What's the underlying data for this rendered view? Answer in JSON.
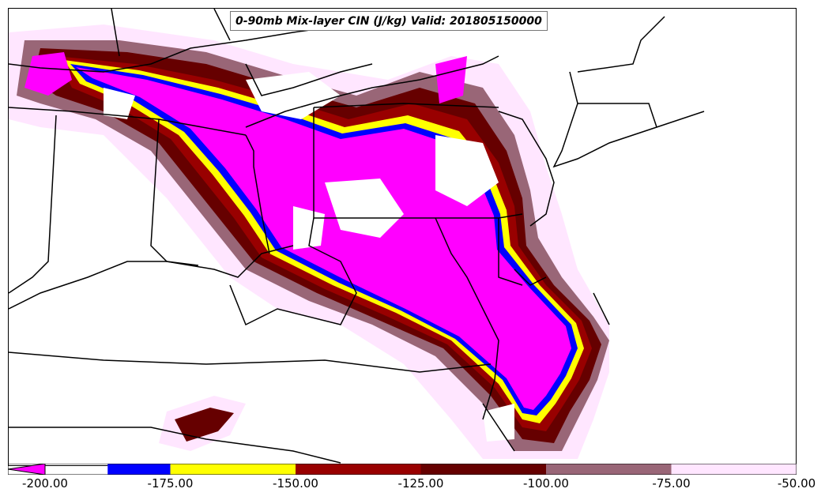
{
  "title": "0-90mb Mix-layer CIN (J/kg) Valid: 201805150000",
  "colorbar": {
    "ticks": [
      "-200.00",
      "-175.00",
      "-150.00",
      "-125.00",
      "-100.00",
      "-75.00",
      "-50.00"
    ],
    "tick_values": [
      -200,
      -175,
      -150,
      -125,
      -100,
      -75,
      -50
    ],
    "bins": [
      {
        "from": -200,
        "to": -187.5,
        "color": "#ff00ff"
      },
      {
        "from": -187.5,
        "to": -175,
        "color": "#0000ff"
      },
      {
        "from": -175,
        "to": -150,
        "color": "#ffff00"
      },
      {
        "from": -150,
        "to": -125,
        "color": "#990000"
      },
      {
        "from": -125,
        "to": -100,
        "color": "#660000"
      },
      {
        "from": -100,
        "to": -75,
        "color": "#996677"
      },
      {
        "from": -75,
        "to": -50,
        "color": "#ffe6ff"
      }
    ],
    "extend": "min"
  },
  "legend_colors": {
    "below_minus_200": "#ff00ff",
    "minus_187": "#0000ff",
    "minus_175": "#ffff00",
    "minus_150": "#990000",
    "minus_125": "#660000",
    "minus_100": "#996677",
    "minus_75": "#ffe6ff"
  }
}
